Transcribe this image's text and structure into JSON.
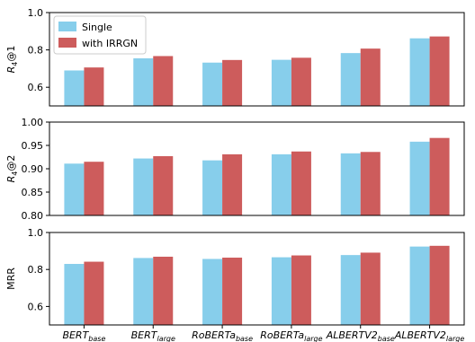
{
  "chart_data": [
    {
      "type": "bar",
      "panel_id": "r1",
      "ylabel_main": "R",
      "ylabel_sub": "4",
      "ylabel_suffix": "@1",
      "ylim": [
        0.5,
        1.0
      ],
      "yticks": [
        "0.6",
        "0.8",
        "1.0"
      ],
      "series": [
        {
          "name": "Single",
          "color": "#87ceeb",
          "values": [
            0.69,
            0.755,
            0.732,
            0.747,
            0.783,
            0.862
          ]
        },
        {
          "name": "with IRRGN",
          "color": "#cd5c5c",
          "values": [
            0.706,
            0.767,
            0.746,
            0.758,
            0.807,
            0.872
          ]
        }
      ]
    },
    {
      "type": "bar",
      "panel_id": "r2",
      "ylabel_main": "R",
      "ylabel_sub": "4",
      "ylabel_suffix": "@2",
      "ylim": [
        0.8,
        1.0
      ],
      "yticks": [
        "0.80",
        "0.85",
        "0.90",
        "0.95",
        "1.00"
      ],
      "series": [
        {
          "name": "Single",
          "color": "#87ceeb",
          "values": [
            0.911,
            0.922,
            0.918,
            0.931,
            0.933,
            0.958
          ]
        },
        {
          "name": "with IRRGN",
          "color": "#cd5c5c",
          "values": [
            0.915,
            0.927,
            0.931,
            0.937,
            0.936,
            0.966
          ]
        }
      ]
    },
    {
      "type": "bar",
      "panel_id": "mrr",
      "ylabel_main": "MRR",
      "ylabel_sub": "",
      "ylabel_suffix": "",
      "ylim": [
        0.5,
        1.0
      ],
      "yticks": [
        "0.6",
        "0.8",
        "1.0"
      ],
      "series": [
        {
          "name": "Single",
          "color": "#87ceeb",
          "values": [
            0.83,
            0.862,
            0.857,
            0.866,
            0.878,
            0.924
          ]
        },
        {
          "name": "with IRRGN",
          "color": "#cd5c5c",
          "values": [
            0.842,
            0.869,
            0.864,
            0.876,
            0.891,
            0.928
          ]
        }
      ]
    }
  ],
  "categories": [
    {
      "base": "BERT",
      "sub": "base"
    },
    {
      "base": "BERT",
      "sub": "large"
    },
    {
      "base": "RoBERTa",
      "sub": "base"
    },
    {
      "base": "RoBERTa",
      "sub": "large"
    },
    {
      "base": "ALBERTV2",
      "sub": "base"
    },
    {
      "base": "ALBERTV2",
      "sub": "large"
    }
  ],
  "legend": {
    "position": "top-left",
    "items": [
      "Single",
      "with IRRGN"
    ]
  }
}
